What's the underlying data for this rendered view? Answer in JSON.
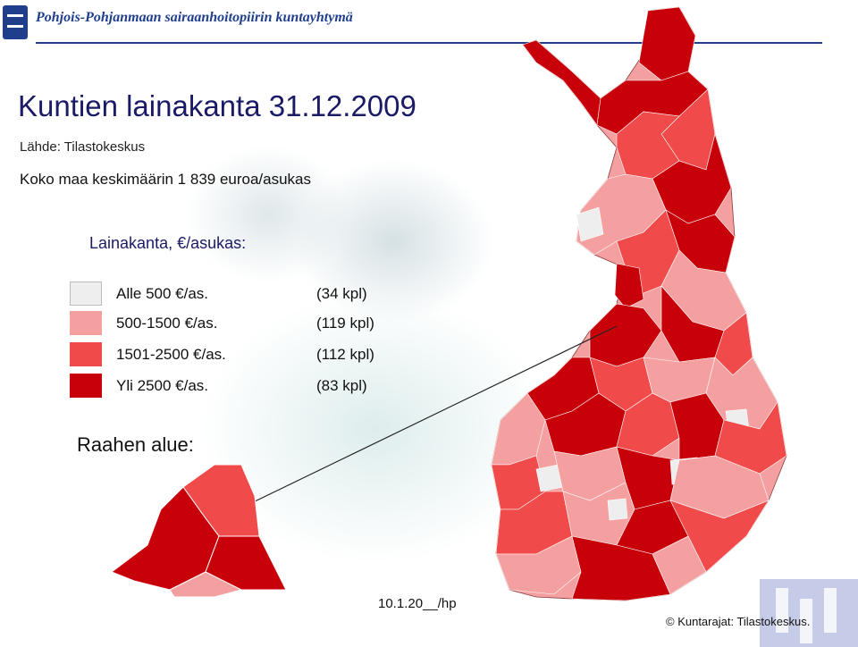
{
  "header": {
    "organization": "Pohjois-Pohjanmaan sairaanhoitopiirin kuntayhtymä"
  },
  "title": "Kuntien lainakanta 31.12.2009",
  "source": "Lähde: Tilastokeskus",
  "average": "Koko maa keskimäärin 1 839 euroa/asukas",
  "legend": {
    "title": "Lainakanta, €/asukas:",
    "items": [
      {
        "label": "Alle 500 €/as.",
        "count": "(34 kpl)",
        "color": "#eeeeee"
      },
      {
        "label": "500-1500 €/as.",
        "count": "(119 kpl)",
        "color": "#f5a0a0"
      },
      {
        "label": "1501-2500 €/as.",
        "count": "(112 kpl)",
        "color": "#f04a4a"
      },
      {
        "label": "Yli 2500 €/as.",
        "count": "(83 kpl)",
        "color": "#c8000a"
      }
    ]
  },
  "inset": {
    "title": "Raahen alue:"
  },
  "footer": {
    "date": "10.1.20__/hp",
    "credit": "© Kuntarajat: Tilastokeskus."
  },
  "colors": {
    "brand_blue": "#1f3f8c",
    "very_low": "#eeeeee",
    "low": "#f5a0a0",
    "mid": "#f04a4a",
    "high": "#c8000a"
  }
}
